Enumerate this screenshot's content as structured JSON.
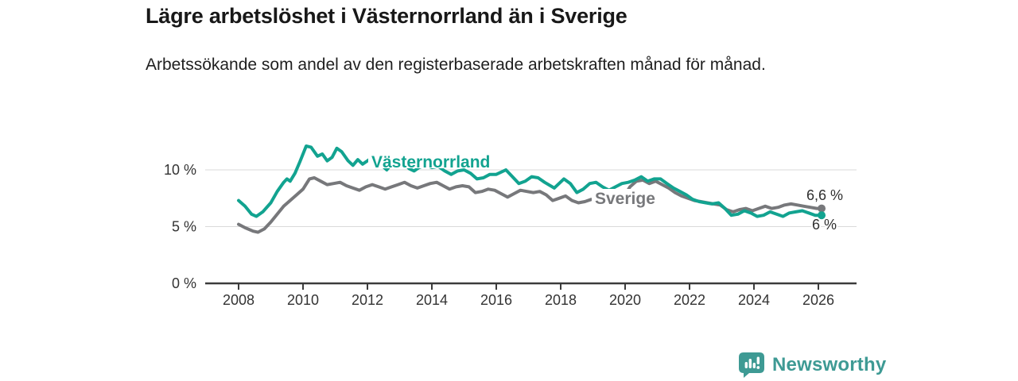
{
  "header": {
    "title": "Lägre arbetslöshet i Västernorrland än i Sverige",
    "subtitle": "Arbetssökande som andel av den registerbaserade arbetskraften månad för månad."
  },
  "footer": {
    "brand": "Newsworthy",
    "brand_color": "#3e9a94",
    "logo_icon": "bar-chart-speech-bubble-icon"
  },
  "chart_data": {
    "type": "line",
    "title": "Lägre arbetslöshet i Västernorrland än i Sverige",
    "subtitle": "Arbetssökande som andel av den registerbaserade arbetskraften månad för månad.",
    "xlabel": "",
    "ylabel": "",
    "grid": "horizontal",
    "legend": "inline-labels",
    "xlim": [
      2007,
      2027.2
    ],
    "ylim": [
      0,
      12.5
    ],
    "x_ticks": [
      2008,
      2010,
      2012,
      2014,
      2016,
      2018,
      2020,
      2022,
      2024,
      2026
    ],
    "y_ticks": [
      {
        "value": 0,
        "label": "0 %"
      },
      {
        "value": 5,
        "label": "5 %"
      },
      {
        "value": 10,
        "label": "10 %"
      }
    ],
    "grid_color": "#dadada",
    "axis_color": "#3b3b3b",
    "tick_label_color": "#333333",
    "end_label_color": "#2f2f2f",
    "series": [
      {
        "name": "Sverige",
        "color": "#77787b",
        "end_label": "6,6 %",
        "last_value": 6.6,
        "points": [
          [
            2008.0,
            5.2
          ],
          [
            2008.2,
            4.9
          ],
          [
            2008.45,
            4.6
          ],
          [
            2008.6,
            4.5
          ],
          [
            2008.8,
            4.8
          ],
          [
            2009.0,
            5.4
          ],
          [
            2009.2,
            6.1
          ],
          [
            2009.4,
            6.8
          ],
          [
            2009.6,
            7.3
          ],
          [
            2009.8,
            7.8
          ],
          [
            2010.0,
            8.3
          ],
          [
            2010.2,
            9.2
          ],
          [
            2010.35,
            9.3
          ],
          [
            2010.55,
            9.0
          ],
          [
            2010.75,
            8.7
          ],
          [
            2010.95,
            8.8
          ],
          [
            2011.15,
            8.9
          ],
          [
            2011.35,
            8.6
          ],
          [
            2011.55,
            8.4
          ],
          [
            2011.75,
            8.2
          ],
          [
            2011.95,
            8.5
          ],
          [
            2012.15,
            8.7
          ],
          [
            2012.35,
            8.5
          ],
          [
            2012.55,
            8.3
          ],
          [
            2012.75,
            8.5
          ],
          [
            2012.95,
            8.7
          ],
          [
            2013.15,
            8.9
          ],
          [
            2013.35,
            8.6
          ],
          [
            2013.55,
            8.4
          ],
          [
            2013.75,
            8.6
          ],
          [
            2013.95,
            8.8
          ],
          [
            2014.15,
            8.9
          ],
          [
            2014.35,
            8.6
          ],
          [
            2014.55,
            8.3
          ],
          [
            2014.75,
            8.5
          ],
          [
            2014.95,
            8.6
          ],
          [
            2015.15,
            8.5
          ],
          [
            2015.35,
            8.0
          ],
          [
            2015.55,
            8.1
          ],
          [
            2015.75,
            8.3
          ],
          [
            2015.95,
            8.2
          ],
          [
            2016.15,
            7.9
          ],
          [
            2016.35,
            7.6
          ],
          [
            2016.55,
            7.9
          ],
          [
            2016.75,
            8.2
          ],
          [
            2016.95,
            8.1
          ],
          [
            2017.15,
            8.0
          ],
          [
            2017.35,
            8.1
          ],
          [
            2017.55,
            7.8
          ],
          [
            2017.75,
            7.3
          ],
          [
            2017.95,
            7.5
          ],
          [
            2018.15,
            7.7
          ],
          [
            2018.35,
            7.3
          ],
          [
            2018.55,
            7.1
          ],
          [
            2018.75,
            7.2
          ],
          [
            2018.95,
            7.4
          ],
          [
            2019.15,
            7.3
          ],
          [
            2019.35,
            7.1
          ],
          [
            2019.55,
            7.2
          ],
          [
            2019.75,
            7.3
          ],
          [
            2019.95,
            7.6
          ],
          [
            2020.15,
            8.5
          ],
          [
            2020.35,
            9.0
          ],
          [
            2020.55,
            9.1
          ],
          [
            2020.75,
            8.8
          ],
          [
            2020.95,
            9.0
          ],
          [
            2021.15,
            8.7
          ],
          [
            2021.35,
            8.4
          ],
          [
            2021.55,
            8.0
          ],
          [
            2021.75,
            7.7
          ],
          [
            2021.95,
            7.5
          ],
          [
            2022.15,
            7.3
          ],
          [
            2022.35,
            7.2
          ],
          [
            2022.55,
            7.1
          ],
          [
            2022.75,
            7.0
          ],
          [
            2022.95,
            6.9
          ],
          [
            2023.15,
            6.5
          ],
          [
            2023.35,
            6.3
          ],
          [
            2023.55,
            6.5
          ],
          [
            2023.75,
            6.6
          ],
          [
            2023.95,
            6.4
          ],
          [
            2024.15,
            6.6
          ],
          [
            2024.35,
            6.8
          ],
          [
            2024.55,
            6.6
          ],
          [
            2024.75,
            6.7
          ],
          [
            2024.95,
            6.9
          ],
          [
            2025.15,
            7.0
          ],
          [
            2025.35,
            6.9
          ],
          [
            2025.55,
            6.8
          ],
          [
            2025.75,
            6.7
          ],
          [
            2025.95,
            6.6
          ],
          [
            2026.1,
            6.6
          ]
        ]
      },
      {
        "name": "Västernorrland",
        "color": "#12a390",
        "end_label": "6 %",
        "last_value": 6.0,
        "points": [
          [
            2008.0,
            7.3
          ],
          [
            2008.2,
            6.8
          ],
          [
            2008.4,
            6.1
          ],
          [
            2008.55,
            5.9
          ],
          [
            2008.75,
            6.3
          ],
          [
            2009.0,
            7.1
          ],
          [
            2009.2,
            8.1
          ],
          [
            2009.4,
            8.9
          ],
          [
            2009.5,
            9.2
          ],
          [
            2009.6,
            9.0
          ],
          [
            2009.75,
            9.7
          ],
          [
            2009.9,
            10.7
          ],
          [
            2010.1,
            12.1
          ],
          [
            2010.25,
            12.0
          ],
          [
            2010.45,
            11.2
          ],
          [
            2010.6,
            11.4
          ],
          [
            2010.75,
            10.8
          ],
          [
            2010.9,
            11.1
          ],
          [
            2011.05,
            11.9
          ],
          [
            2011.2,
            11.6
          ],
          [
            2011.4,
            10.8
          ],
          [
            2011.55,
            10.4
          ],
          [
            2011.7,
            10.9
          ],
          [
            2011.85,
            10.5
          ],
          [
            2012.0,
            10.8
          ],
          [
            2012.2,
            11.2
          ],
          [
            2012.4,
            10.5
          ],
          [
            2012.6,
            10.0
          ],
          [
            2012.75,
            10.5
          ],
          [
            2012.9,
            10.9
          ],
          [
            2013.1,
            10.7
          ],
          [
            2013.3,
            10.1
          ],
          [
            2013.45,
            9.9
          ],
          [
            2013.6,
            10.2
          ],
          [
            2013.8,
            10.4
          ],
          [
            2014.0,
            10.2
          ],
          [
            2014.2,
            10.3
          ],
          [
            2014.4,
            9.9
          ],
          [
            2014.6,
            9.6
          ],
          [
            2014.8,
            9.9
          ],
          [
            2015.0,
            10.0
          ],
          [
            2015.2,
            9.7
          ],
          [
            2015.4,
            9.2
          ],
          [
            2015.6,
            9.3
          ],
          [
            2015.8,
            9.6
          ],
          [
            2016.0,
            9.6
          ],
          [
            2016.3,
            10.0
          ],
          [
            2016.5,
            9.4
          ],
          [
            2016.7,
            8.8
          ],
          [
            2016.9,
            9.0
          ],
          [
            2017.1,
            9.4
          ],
          [
            2017.3,
            9.3
          ],
          [
            2017.5,
            8.9
          ],
          [
            2017.8,
            8.4
          ],
          [
            2018.1,
            9.2
          ],
          [
            2018.3,
            8.8
          ],
          [
            2018.5,
            8.0
          ],
          [
            2018.7,
            8.3
          ],
          [
            2018.9,
            8.8
          ],
          [
            2019.1,
            8.9
          ],
          [
            2019.3,
            8.5
          ],
          [
            2019.5,
            8.2
          ],
          [
            2019.7,
            8.5
          ],
          [
            2019.9,
            8.8
          ],
          [
            2020.1,
            8.9
          ],
          [
            2020.3,
            9.1
          ],
          [
            2020.5,
            9.4
          ],
          [
            2020.7,
            9.0
          ],
          [
            2020.9,
            9.2
          ],
          [
            2021.1,
            9.2
          ],
          [
            2021.3,
            8.8
          ],
          [
            2021.5,
            8.4
          ],
          [
            2021.7,
            8.1
          ],
          [
            2021.9,
            7.8
          ],
          [
            2022.1,
            7.4
          ],
          [
            2022.3,
            7.2
          ],
          [
            2022.5,
            7.1
          ],
          [
            2022.7,
            7.0
          ],
          [
            2022.9,
            7.1
          ],
          [
            2023.1,
            6.6
          ],
          [
            2023.3,
            6.0
          ],
          [
            2023.5,
            6.1
          ],
          [
            2023.7,
            6.4
          ],
          [
            2023.9,
            6.2
          ],
          [
            2024.1,
            5.9
          ],
          [
            2024.3,
            6.0
          ],
          [
            2024.5,
            6.3
          ],
          [
            2024.7,
            6.1
          ],
          [
            2024.9,
            5.9
          ],
          [
            2025.1,
            6.2
          ],
          [
            2025.3,
            6.3
          ],
          [
            2025.5,
            6.4
          ],
          [
            2025.7,
            6.2
          ],
          [
            2025.9,
            6.0
          ],
          [
            2026.1,
            6.0
          ]
        ]
      }
    ]
  }
}
